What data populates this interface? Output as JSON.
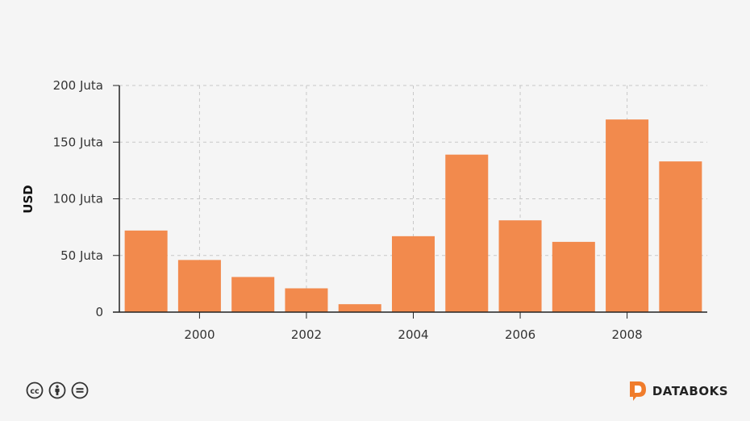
{
  "chart_data": {
    "type": "bar",
    "x": [
      1999,
      2000,
      2001,
      2002,
      2003,
      2004,
      2005,
      2006,
      2007,
      2008,
      2009
    ],
    "values": [
      72,
      46,
      31,
      21,
      7,
      67,
      139,
      81,
      62,
      170,
      133
    ],
    "xticks": [
      {
        "value": 2000,
        "label": "2000"
      },
      {
        "value": 2002,
        "label": "2002"
      },
      {
        "value": 2004,
        "label": "2004"
      },
      {
        "value": 2006,
        "label": "2006"
      },
      {
        "value": 2008,
        "label": "2008"
      }
    ],
    "yticks": [
      {
        "value": 0,
        "label": "0"
      },
      {
        "value": 50,
        "label": "50 Juta"
      },
      {
        "value": 100,
        "label": "100 Juta"
      },
      {
        "value": 150,
        "label": "150 Juta"
      },
      {
        "value": 200,
        "label": "200 Juta"
      }
    ],
    "ylim": [
      0,
      200
    ],
    "ylabel": "USD",
    "xlabel": "",
    "title": "",
    "grid": true,
    "bar_color": "#f28a4d"
  },
  "footer": {
    "brand": "DATABOKS",
    "brand_color": "#f07c2b",
    "license_icons": [
      "cc-icon",
      "by-icon",
      "nd-icon"
    ]
  }
}
